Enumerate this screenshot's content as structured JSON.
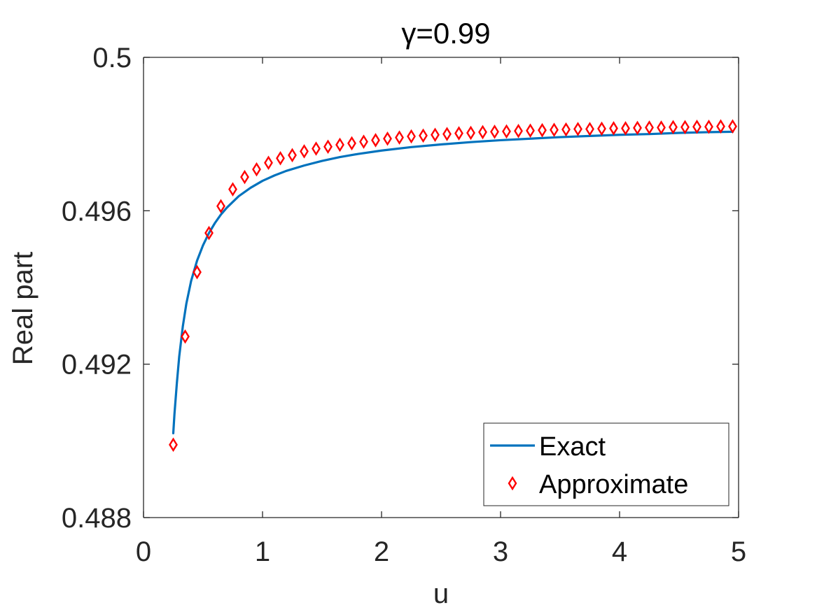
{
  "chart_data": {
    "type": "line",
    "title": "γ=0.99",
    "xlabel": "u",
    "ylabel": "Real part",
    "xlim": [
      0,
      5
    ],
    "ylim": [
      0.488,
      0.5
    ],
    "xticks": [
      0,
      1,
      2,
      3,
      4,
      5
    ],
    "xtick_labels": [
      "0",
      "1",
      "2",
      "3",
      "4",
      "5"
    ],
    "yticks": [
      0.488,
      0.492,
      0.496,
      0.5
    ],
    "ytick_labels": [
      "0.488",
      "0.492",
      "0.496",
      "0.5"
    ],
    "grid": false,
    "legend_position": "bottom-right",
    "series": [
      {
        "name": "Exact",
        "style": "line",
        "color": "#0072BD",
        "x": [
          0.25,
          0.26,
          0.28,
          0.3,
          0.33,
          0.36,
          0.4,
          0.45,
          0.5,
          0.55,
          0.6,
          0.65,
          0.7,
          0.8,
          0.9,
          1.0,
          1.1,
          1.2,
          1.35,
          1.5,
          1.65,
          1.8,
          2.0,
          2.25,
          2.5,
          2.75,
          3.0,
          3.25,
          3.5,
          3.75,
          4.0,
          4.25,
          4.5,
          4.75,
          4.95
        ],
        "y": [
          0.4902,
          0.4907,
          0.4915,
          0.4922,
          0.49298,
          0.49358,
          0.49417,
          0.4947,
          0.4951,
          0.49542,
          0.49568,
          0.4959,
          0.49608,
          0.49638,
          0.4966,
          0.49678,
          0.49692,
          0.49704,
          0.49718,
          0.4973,
          0.4974,
          0.49748,
          0.49757,
          0.49766,
          0.49773,
          0.49779,
          0.49784,
          0.49788,
          0.49792,
          0.49795,
          0.49798,
          0.498,
          0.49803,
          0.49805,
          0.49806
        ]
      },
      {
        "name": "Approximate",
        "style": "markers",
        "marker": "diamond",
        "color": "#FF0000",
        "x": [
          0.25,
          0.35,
          0.45,
          0.55,
          0.65,
          0.75,
          0.85,
          0.95,
          1.05,
          1.15,
          1.25,
          1.35,
          1.45,
          1.55,
          1.65,
          1.75,
          1.85,
          1.95,
          2.05,
          2.15,
          2.25,
          2.35,
          2.45,
          2.55,
          2.65,
          2.75,
          2.85,
          2.95,
          3.05,
          3.15,
          3.25,
          3.35,
          3.45,
          3.55,
          3.65,
          3.75,
          3.85,
          3.95,
          4.05,
          4.15,
          4.25,
          4.35,
          4.45,
          4.55,
          4.65,
          4.75,
          4.85,
          4.95
        ],
        "y": [
          0.4899,
          0.49272,
          0.4944,
          0.49542,
          0.49612,
          0.49656,
          0.49688,
          0.49708,
          0.49725,
          0.49737,
          0.49745,
          0.49755,
          0.49762,
          0.49767,
          0.49772,
          0.49776,
          0.4978,
          0.49784,
          0.49788,
          0.49791,
          0.49794,
          0.49796,
          0.49798,
          0.498,
          0.49802,
          0.49803,
          0.49805,
          0.49806,
          0.49807,
          0.49808,
          0.49809,
          0.4981,
          0.49811,
          0.49812,
          0.49813,
          0.49813,
          0.49814,
          0.49815,
          0.49815,
          0.49816,
          0.49817,
          0.49817,
          0.49818,
          0.49818,
          0.49819,
          0.49819,
          0.4982,
          0.4982
        ]
      }
    ]
  }
}
